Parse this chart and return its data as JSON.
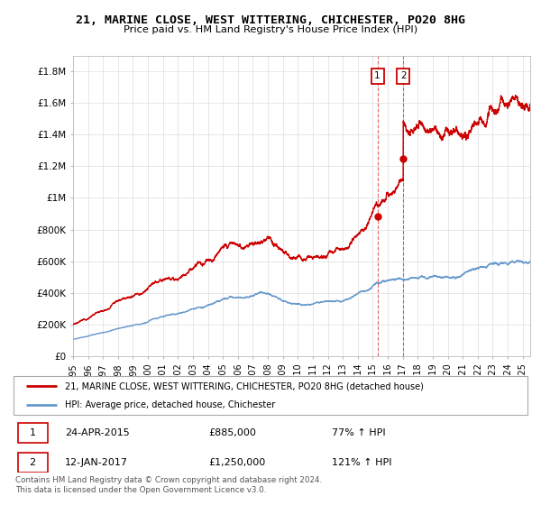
{
  "title1": "21, MARINE CLOSE, WEST WITTERING, CHICHESTER, PO20 8HG",
  "title2": "Price paid vs. HM Land Registry's House Price Index (HPI)",
  "ylabel_ticks": [
    "£0",
    "£200K",
    "£400K",
    "£600K",
    "£800K",
    "£1M",
    "£1.2M",
    "£1.4M",
    "£1.6M",
    "£1.8M"
  ],
  "ylabel_values": [
    0,
    200000,
    400000,
    600000,
    800000,
    1000000,
    1200000,
    1400000,
    1600000,
    1800000
  ],
  "ylim": [
    0,
    1900000
  ],
  "xlim_start": 1995.0,
  "xlim_end": 2025.5,
  "legend1_label": "21, MARINE CLOSE, WEST WITTERING, CHICHESTER, PO20 8HG (detached house)",
  "legend2_label": "HPI: Average price, detached house, Chichester",
  "annotation1_num": "1",
  "annotation1_date": "24-APR-2015",
  "annotation1_price": "£885,000",
  "annotation1_pct": "77% ↑ HPI",
  "annotation2_num": "2",
  "annotation2_date": "12-JAN-2017",
  "annotation2_price": "£1,250,000",
  "annotation2_pct": "121% ↑ HPI",
  "footer": "Contains HM Land Registry data © Crown copyright and database right 2024.\nThis data is licensed under the Open Government Licence v3.0.",
  "point1_x": 2015.31,
  "point1_y": 885000,
  "point2_x": 2017.03,
  "point2_y": 1250000,
  "line1_color": "#cc0000",
  "line2_color": "#6699cc",
  "marker_color": "#cc0000",
  "grid_color": "#dddddd",
  "box_color": "#cc0000"
}
